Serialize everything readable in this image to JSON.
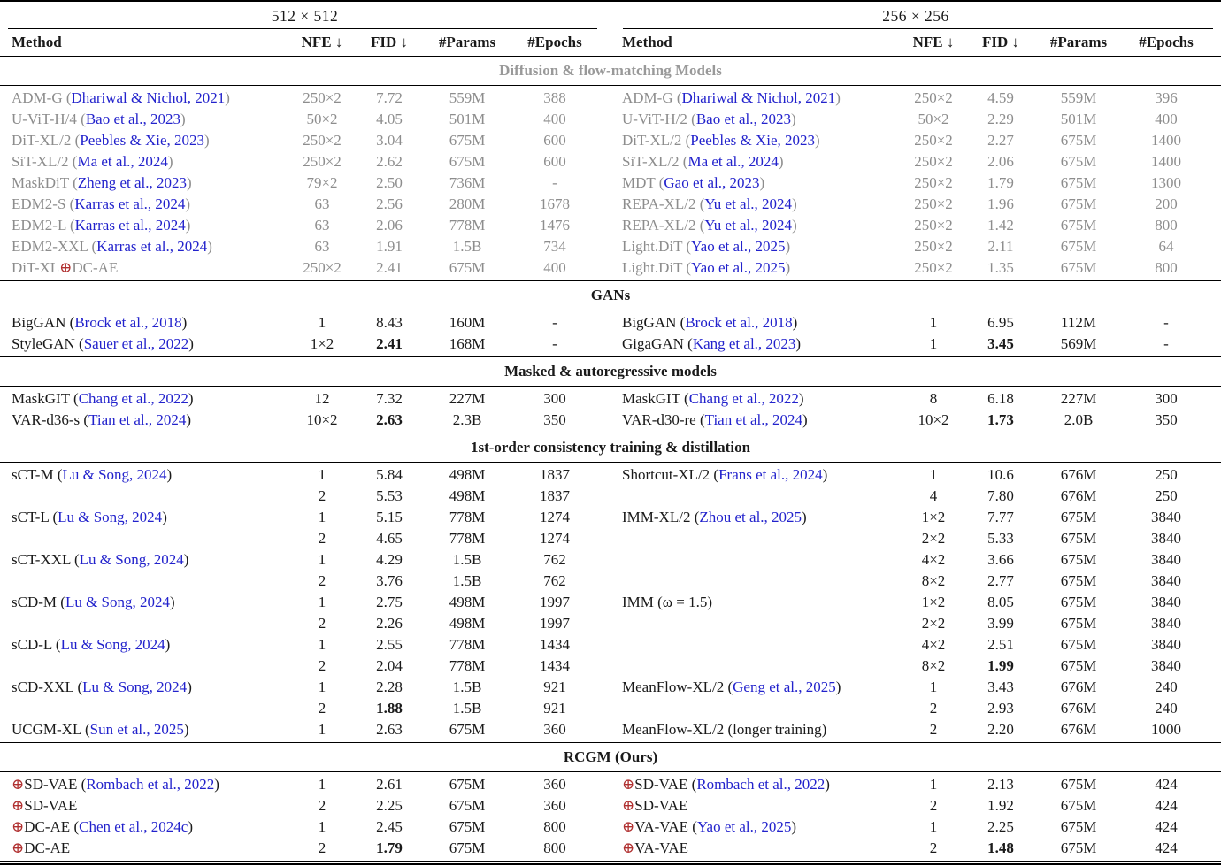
{
  "table": {
    "left_title": "512 × 512",
    "right_title": "256 × 256",
    "columns": [
      {
        "key": "method",
        "label": "Method"
      },
      {
        "key": "nfe",
        "label": "NFE ↓"
      },
      {
        "key": "fid",
        "label": "FID ↓"
      },
      {
        "key": "params",
        "label": "#Params"
      },
      {
        "key": "epochs",
        "label": "#Epochs"
      }
    ],
    "colors": {
      "text": "#1a1a1a",
      "muted_text": "#8d8d8d",
      "citation_blue": "#2222cc",
      "oplus_red": "#b03030",
      "section_header_gray": "#999999"
    },
    "glyphs": {
      "down_arrow": "↓",
      "oplus_icon": "⊕",
      "times": "×"
    },
    "sections": [
      {
        "header": "Diffusion & flow-matching Models",
        "header_gray": true,
        "muted_rows": true,
        "left": [
          {
            "method": "ADM-G",
            "cite": "Dhariwal & Nichol, 2021",
            "nfe": "250×2",
            "fid": "7.72",
            "params": "559M",
            "epochs": "388"
          },
          {
            "method": "U-ViT-H/4",
            "cite": "Bao et al., 2023",
            "nfe": "50×2",
            "fid": "4.05",
            "params": "501M",
            "epochs": "400"
          },
          {
            "method": "DiT-XL/2",
            "cite": "Peebles & Xie, 2023",
            "nfe": "250×2",
            "fid": "3.04",
            "params": "675M",
            "epochs": "600"
          },
          {
            "method": "SiT-XL/2",
            "cite": "Ma et al., 2024",
            "nfe": "250×2",
            "fid": "2.62",
            "params": "675M",
            "epochs": "600"
          },
          {
            "method": "MaskDiT",
            "cite": "Zheng et al., 2023",
            "nfe": "79×2",
            "fid": "2.50",
            "params": "736M",
            "epochs": "-"
          },
          {
            "method": "EDM2-S",
            "cite": "Karras et al., 2024",
            "nfe": "63",
            "fid": "2.56",
            "params": "280M",
            "epochs": "1678"
          },
          {
            "method": "EDM2-L",
            "cite": "Karras et al., 2024",
            "nfe": "63",
            "fid": "2.06",
            "params": "778M",
            "epochs": "1476"
          },
          {
            "method": "EDM2-XXL",
            "cite": "Karras et al., 2024",
            "nfe": "63",
            "fid": "1.91",
            "params": "1.5B",
            "epochs": "734"
          },
          {
            "method": "DiT-XL⊕DC-AE",
            "cite": null,
            "nfe": "250×2",
            "fid": "2.41",
            "params": "675M",
            "epochs": "400"
          }
        ],
        "right": [
          {
            "method": "ADM-G",
            "cite": "Dhariwal & Nichol, 2021",
            "nfe": "250×2",
            "fid": "4.59",
            "params": "559M",
            "epochs": "396"
          },
          {
            "method": "U-ViT-H/2",
            "cite": "Bao et al., 2023",
            "nfe": "50×2",
            "fid": "2.29",
            "params": "501M",
            "epochs": "400"
          },
          {
            "method": "DiT-XL/2",
            "cite": "Peebles & Xie, 2023",
            "nfe": "250×2",
            "fid": "2.27",
            "params": "675M",
            "epochs": "1400"
          },
          {
            "method": "SiT-XL/2",
            "cite": "Ma et al., 2024",
            "nfe": "250×2",
            "fid": "2.06",
            "params": "675M",
            "epochs": "1400"
          },
          {
            "method": "MDT",
            "cite": "Gao et al., 2023",
            "nfe": "250×2",
            "fid": "1.79",
            "params": "675M",
            "epochs": "1300"
          },
          {
            "method": "REPA-XL/2",
            "cite": "Yu et al., 2024",
            "nfe": "250×2",
            "fid": "1.96",
            "params": "675M",
            "epochs": "200"
          },
          {
            "method": "REPA-XL/2",
            "cite": "Yu et al., 2024",
            "nfe": "250×2",
            "fid": "1.42",
            "params": "675M",
            "epochs": "800"
          },
          {
            "method": "Light.DiT",
            "cite": "Yao et al., 2025",
            "nfe": "250×2",
            "fid": "2.11",
            "params": "675M",
            "epochs": "64"
          },
          {
            "method": "Light.DiT",
            "cite": "Yao et al., 2025",
            "nfe": "250×2",
            "fid": "1.35",
            "params": "675M",
            "epochs": "800"
          }
        ]
      },
      {
        "header": "GANs",
        "header_gray": false,
        "muted_rows": false,
        "left": [
          {
            "method": "BigGAN",
            "cite": "Brock et al., 2018",
            "nfe": "1",
            "fid": "8.43",
            "params": "160M",
            "epochs": "-"
          },
          {
            "method": "StyleGAN",
            "cite": "Sauer et al., 2022",
            "nfe": "1×2",
            "fid": "2.41",
            "fid_bold": true,
            "params": "168M",
            "epochs": "-"
          }
        ],
        "right": [
          {
            "method": "BigGAN",
            "cite": "Brock et al., 2018",
            "nfe": "1",
            "fid": "6.95",
            "params": "112M",
            "epochs": "-"
          },
          {
            "method": "GigaGAN",
            "cite": "Kang et al., 2023",
            "nfe": "1",
            "fid": "3.45",
            "fid_bold": true,
            "params": "569M",
            "epochs": "-"
          }
        ]
      },
      {
        "header": "Masked & autoregressive models",
        "header_gray": false,
        "muted_rows": false,
        "left": [
          {
            "method": "MaskGIT",
            "cite": "Chang et al., 2022",
            "nfe": "12",
            "fid": "7.32",
            "params": "227M",
            "epochs": "300"
          },
          {
            "method": "VAR-d36-s",
            "cite": "Tian et al., 2024",
            "nfe": "10×2",
            "fid": "2.63",
            "fid_bold": true,
            "params": "2.3B",
            "epochs": "350"
          }
        ],
        "right": [
          {
            "method": "MaskGIT",
            "cite": "Chang et al., 2022",
            "nfe": "8",
            "fid": "6.18",
            "params": "227M",
            "epochs": "300"
          },
          {
            "method": "VAR-d30-re",
            "cite": "Tian et al., 2024",
            "nfe": "10×2",
            "fid": "1.73",
            "fid_bold": true,
            "params": "2.0B",
            "epochs": "350"
          }
        ]
      },
      {
        "header": "1st-order consistency training & distillation",
        "header_gray": false,
        "muted_rows": false,
        "left": [
          {
            "method": "sCT-M",
            "cite": "Lu & Song, 2024",
            "nfe": "1",
            "fid": "5.84",
            "params": "498M",
            "epochs": "1837"
          },
          {
            "method": "",
            "cite": null,
            "nfe": "2",
            "fid": "5.53",
            "params": "498M",
            "epochs": "1837"
          },
          {
            "method": "sCT-L",
            "cite": "Lu & Song, 2024",
            "nfe": "1",
            "fid": "5.15",
            "params": "778M",
            "epochs": "1274"
          },
          {
            "method": "",
            "cite": null,
            "nfe": "2",
            "fid": "4.65",
            "params": "778M",
            "epochs": "1274"
          },
          {
            "method": "sCT-XXL",
            "cite": "Lu & Song, 2024",
            "nfe": "1",
            "fid": "4.29",
            "params": "1.5B",
            "epochs": "762"
          },
          {
            "method": "",
            "cite": null,
            "nfe": "2",
            "fid": "3.76",
            "params": "1.5B",
            "epochs": "762"
          },
          {
            "method": "sCD-M",
            "cite": "Lu & Song, 2024",
            "nfe": "1",
            "fid": "2.75",
            "params": "498M",
            "epochs": "1997"
          },
          {
            "method": "",
            "cite": null,
            "nfe": "2",
            "fid": "2.26",
            "params": "498M",
            "epochs": "1997"
          },
          {
            "method": "sCD-L",
            "cite": "Lu & Song, 2024",
            "nfe": "1",
            "fid": "2.55",
            "params": "778M",
            "epochs": "1434"
          },
          {
            "method": "",
            "cite": null,
            "nfe": "2",
            "fid": "2.04",
            "params": "778M",
            "epochs": "1434"
          },
          {
            "method": "sCD-XXL",
            "cite": "Lu & Song, 2024",
            "nfe": "1",
            "fid": "2.28",
            "params": "1.5B",
            "epochs": "921"
          },
          {
            "method": "",
            "cite": null,
            "nfe": "2",
            "fid": "1.88",
            "fid_bold": true,
            "params": "1.5B",
            "epochs": "921"
          },
          {
            "method": "UCGM-XL",
            "cite": "Sun et al., 2025",
            "nfe": "1",
            "fid": "2.63",
            "params": "675M",
            "epochs": "360"
          }
        ],
        "right": [
          {
            "method": "Shortcut-XL/2",
            "cite": "Frans et al., 2024",
            "nfe": "1",
            "fid": "10.6",
            "params": "676M",
            "epochs": "250"
          },
          {
            "method": "",
            "cite": null,
            "nfe": "4",
            "fid": "7.80",
            "params": "676M",
            "epochs": "250"
          },
          {
            "method": "IMM-XL/2",
            "cite": "Zhou et al., 2025",
            "nfe": "1×2",
            "fid": "7.77",
            "params": "675M",
            "epochs": "3840"
          },
          {
            "method": "",
            "cite": null,
            "nfe": "2×2",
            "fid": "5.33",
            "params": "675M",
            "epochs": "3840"
          },
          {
            "method": "",
            "cite": null,
            "nfe": "4×2",
            "fid": "3.66",
            "params": "675M",
            "epochs": "3840"
          },
          {
            "method": "",
            "cite": null,
            "nfe": "8×2",
            "fid": "2.77",
            "params": "675M",
            "epochs": "3840"
          },
          {
            "method": "IMM (ω = 1.5)",
            "cite": null,
            "nfe": "1×2",
            "fid": "8.05",
            "params": "675M",
            "epochs": "3840"
          },
          {
            "method": "",
            "cite": null,
            "nfe": "2×2",
            "fid": "3.99",
            "params": "675M",
            "epochs": "3840"
          },
          {
            "method": "",
            "cite": null,
            "nfe": "4×2",
            "fid": "2.51",
            "params": "675M",
            "epochs": "3840"
          },
          {
            "method": "",
            "cite": null,
            "nfe": "8×2",
            "fid": "1.99",
            "fid_bold": true,
            "params": "675M",
            "epochs": "3840"
          },
          {
            "method": "MeanFlow-XL/2",
            "cite": "Geng et al., 2025",
            "nfe": "1",
            "fid": "3.43",
            "params": "676M",
            "epochs": "240"
          },
          {
            "method": "",
            "cite": null,
            "nfe": "2",
            "fid": "2.93",
            "params": "676M",
            "epochs": "240"
          },
          {
            "method": "MeanFlow-XL/2 (longer training)",
            "cite": null,
            "nfe": "2",
            "fid": "2.20",
            "params": "676M",
            "epochs": "1000"
          }
        ]
      },
      {
        "header": "RCGM (Ours)",
        "header_gray": false,
        "muted_rows": false,
        "left": [
          {
            "method": "⊕SD-VAE",
            "cite": "Rombach et al., 2022",
            "nfe": "1",
            "fid": "2.61",
            "params": "675M",
            "epochs": "360"
          },
          {
            "method": "⊕SD-VAE",
            "cite": null,
            "nfe": "2",
            "fid": "2.25",
            "params": "675M",
            "epochs": "360"
          },
          {
            "method": "⊕DC-AE",
            "cite": "Chen et al., 2024c",
            "nfe": "1",
            "fid": "2.45",
            "params": "675M",
            "epochs": "800"
          },
          {
            "method": "⊕DC-AE",
            "cite": null,
            "nfe": "2",
            "fid": "1.79",
            "fid_bold": true,
            "params": "675M",
            "epochs": "800"
          }
        ],
        "right": [
          {
            "method": "⊕SD-VAE",
            "cite": "Rombach et al., 2022",
            "nfe": "1",
            "fid": "2.13",
            "params": "675M",
            "epochs": "424"
          },
          {
            "method": "⊕SD-VAE",
            "cite": null,
            "nfe": "2",
            "fid": "1.92",
            "params": "675M",
            "epochs": "424"
          },
          {
            "method": "⊕VA-VAE",
            "cite": "Yao et al., 2025",
            "nfe": "1",
            "fid": "2.25",
            "params": "675M",
            "epochs": "424"
          },
          {
            "method": "⊕VA-VAE",
            "cite": null,
            "nfe": "2",
            "fid": "1.48",
            "fid_bold": true,
            "params": "675M",
            "epochs": "424"
          }
        ]
      }
    ]
  }
}
